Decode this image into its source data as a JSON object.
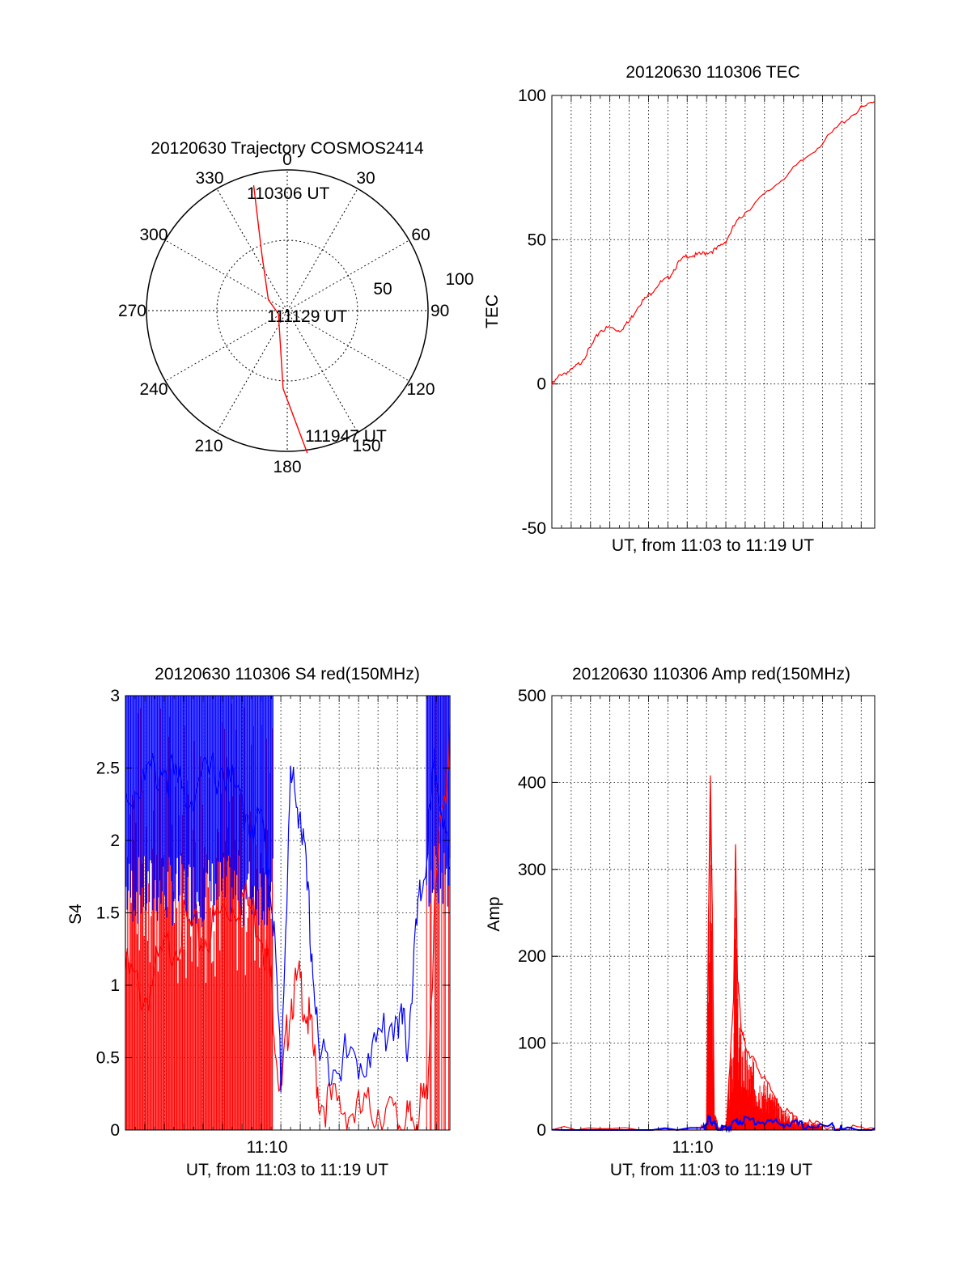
{
  "chart_data": [
    {
      "type": "polar",
      "title": "20120630 Trajectory COSMOS2414",
      "azimuth_labels": [
        "0",
        "30",
        "60",
        "90",
        "120",
        "150",
        "180",
        "210",
        "240",
        "270",
        "300",
        "330"
      ],
      "radial_labels": [
        "50",
        "100"
      ],
      "series": [
        {
          "color": "#ff0000",
          "points": [
            {
              "az": 345,
              "zen": 83
            },
            {
              "az": 336,
              "zen": 40
            },
            {
              "az": 300,
              "zen": 14
            },
            {
              "az": 250,
              "zen": 6
            },
            {
              "az": 183,
              "zen": 50
            },
            {
              "az": 172,
              "zen": 92
            }
          ]
        }
      ],
      "annotations": [
        "110306 UT",
        "111129 UT",
        "111947 UT"
      ]
    },
    {
      "type": "line",
      "title": "20120630 110306 TEC",
      "xlabel": "UT, from 11:03 to 11:19 UT",
      "ylabel": "TEC",
      "xlim": [
        0,
        16.7
      ],
      "ylim": [
        -50,
        100
      ],
      "yticks": [
        "-50",
        "0",
        "50",
        "100"
      ],
      "series": [
        {
          "color": "#ff0000",
          "x": [
            0,
            0.5,
            1.0,
            1.5,
            2.0,
            2.5,
            3.0,
            3.5,
            4.0,
            4.5,
            5.0,
            5.5,
            6.0,
            6.5,
            7.0,
            7.5,
            8.0,
            8.5,
            9.0,
            9.5,
            10.0,
            11.0,
            12.0,
            13.0,
            14.0,
            15.0,
            16.0,
            16.7
          ],
          "y": [
            0,
            4,
            5,
            8,
            13,
            19,
            20,
            19,
            22,
            28,
            31,
            35,
            37,
            42,
            45,
            45,
            46,
            47,
            50,
            56,
            60,
            66,
            72,
            78,
            84,
            91,
            96,
            98
          ]
        }
      ]
    },
    {
      "type": "line",
      "title": "20120630 110306 S4 red(150MHz)",
      "xlabel": "UT, from 11:03 to 11:19 UT",
      "ylabel": "S4",
      "xlim": [
        0,
        16.7
      ],
      "ylim": [
        0,
        3
      ],
      "yticks": [
        "0",
        "0.5",
        "1",
        "1.5",
        "2",
        "2.5",
        "3"
      ],
      "xticks": [
        "11:10"
      ],
      "series": [
        {
          "color": "#ff0000",
          "x": [
            0,
            1,
            2,
            3,
            4,
            5,
            6,
            7,
            7.5,
            8,
            8.5,
            9,
            9.5,
            10,
            11,
            12,
            13,
            14,
            14.5,
            15,
            15.5,
            16,
            16.7
          ],
          "y": [
            1.2,
            1.0,
            1.3,
            1.5,
            1.4,
            1.6,
            1.7,
            1.5,
            1.1,
            0.3,
            1.0,
            1.1,
            0.8,
            0.3,
            0.25,
            0.2,
            0.25,
            0.15,
            0.12,
            0.2,
            0.3,
            1.8,
            2.8
          ]
        },
        {
          "color": "#0000ff",
          "x": [
            0,
            1,
            2,
            3,
            4,
            5,
            6,
            7,
            7.5,
            8,
            8.5,
            9,
            9.5,
            10,
            11,
            12,
            13,
            14,
            14.5,
            15,
            15.5,
            16,
            16.7
          ],
          "y": [
            2.4,
            2.5,
            2.6,
            2.4,
            2.5,
            2.6,
            2.3,
            2.2,
            1.8,
            0.5,
            2.5,
            2.3,
            1.5,
            0.55,
            0.6,
            0.55,
            0.7,
            0.9,
            0.7,
            1.5,
            2.0,
            2.7,
            1.8
          ]
        }
      ]
    },
    {
      "type": "line",
      "title": "20120630 110306 Amp red(150MHz)",
      "xlabel": "UT, from 11:03 to 11:19 UT",
      "ylabel": "Amp",
      "xlim": [
        0,
        16.7
      ],
      "ylim": [
        0,
        500
      ],
      "yticks": [
        "0",
        "100",
        "200",
        "300",
        "400",
        "500"
      ],
      "xticks": [
        "11:10"
      ],
      "series": [
        {
          "color": "#ff0000",
          "x": [
            0,
            7.6,
            8.0,
            8.1,
            8.2,
            8.3,
            8.4,
            8.6,
            9.0,
            9.4,
            9.5,
            9.6,
            9.8,
            10.0,
            10.5,
            11,
            12,
            13,
            14,
            16.7
          ],
          "y": [
            2,
            2,
            5,
            240,
            410,
            260,
            20,
            5,
            3,
            150,
            330,
            180,
            120,
            100,
            80,
            60,
            25,
            10,
            8,
            2
          ]
        },
        {
          "color": "#0000ff",
          "x": [
            0,
            7.8,
            8.1,
            8.3,
            8.6,
            9.0,
            9.5,
            10,
            11,
            12,
            13,
            14.5,
            15,
            16.7
          ],
          "y": [
            2,
            2,
            15,
            12,
            3,
            4,
            12,
            14,
            12,
            10,
            8,
            6,
            3,
            2
          ]
        }
      ]
    }
  ]
}
